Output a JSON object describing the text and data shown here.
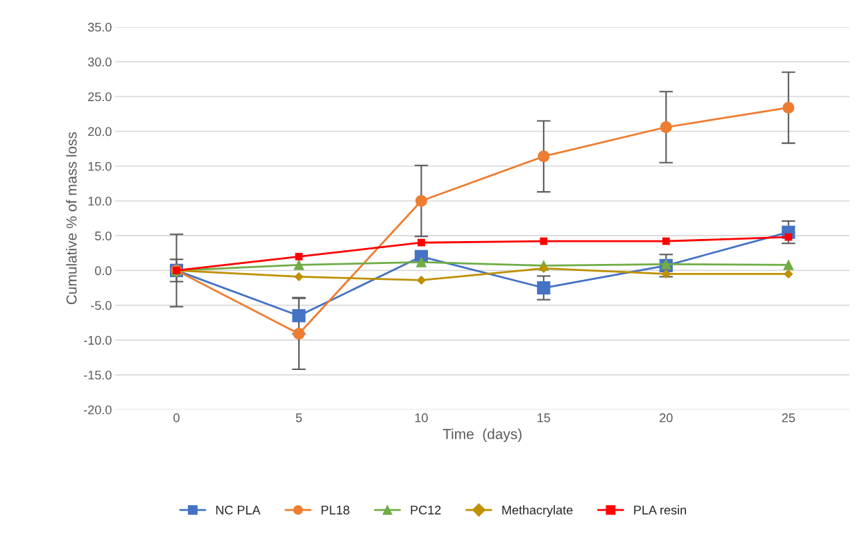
{
  "chart_data": {
    "type": "line",
    "xlabel": "Time  (days)",
    "ylabel": "Cumulative % of mass loss",
    "categories": [
      "0",
      "5",
      "10",
      "15",
      "20",
      "25"
    ],
    "series": [
      {
        "name": "NC PLA",
        "color": "#4472c4",
        "marker": "square",
        "values": [
          0,
          -6.5,
          2.0,
          -2.5,
          0.7,
          5.5
        ],
        "errors": [
          1.6,
          2.6,
          null,
          1.7,
          1.6,
          1.6
        ]
      },
      {
        "name": "PL18",
        "color": "#ed7d31",
        "marker": "circle",
        "values": [
          0,
          -9.1,
          10.0,
          16.4,
          20.6,
          23.4
        ],
        "errors": [
          5.2,
          5.1,
          5.1,
          5.1,
          5.1,
          5.1
        ]
      },
      {
        "name": "PC12",
        "color": "#70ad47",
        "marker": "triangle",
        "values": [
          0,
          0.8,
          1.2,
          0.7,
          0.9,
          0.8
        ]
      },
      {
        "name": "Methacrylate",
        "color": "#bf9000",
        "marker": "diamond",
        "values": [
          0,
          -0.9,
          -1.4,
          0.3,
          -0.5,
          -0.5
        ]
      },
      {
        "name": "PLA resin",
        "color": "#ff0000",
        "marker": "square",
        "values": [
          0,
          2.0,
          4.0,
          4.2,
          4.2,
          4.8
        ]
      }
    ],
    "ylim": [
      -20,
      35
    ],
    "yticks": [
      {
        "value": -20,
        "label": "-20.0"
      },
      {
        "value": -15,
        "label": "-15.0"
      },
      {
        "value": -10,
        "label": "-10.0"
      },
      {
        "value": -5,
        "label": "-5.0"
      },
      {
        "value": 0,
        "label": "0.0"
      },
      {
        "value": 5,
        "label": "5.0"
      },
      {
        "value": 10,
        "label": "10.0"
      },
      {
        "value": 15,
        "label": "15.0"
      },
      {
        "value": 20,
        "label": "20.0"
      },
      {
        "value": 25,
        "label": "25.0"
      },
      {
        "value": 30,
        "label": "30.0"
      },
      {
        "value": 35,
        "label": "35.0"
      }
    ],
    "grid": "y",
    "legend": "bottom"
  }
}
